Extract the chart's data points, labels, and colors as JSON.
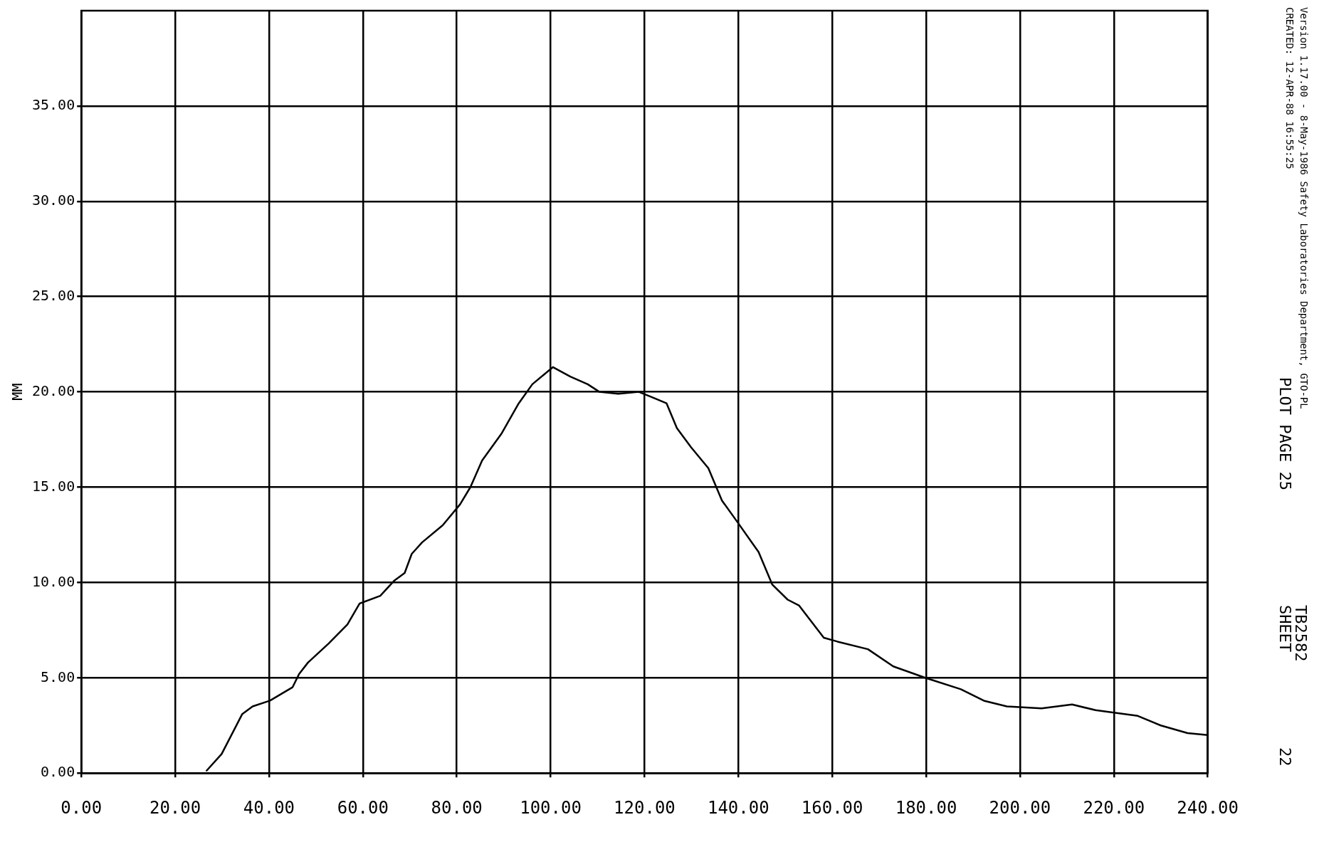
{
  "chart_data": {
    "type": "line",
    "ylabel": "MM",
    "x": [
      26.6,
      29.9,
      34.3,
      36.5,
      40.2,
      45,
      46.4,
      48.3,
      52.7,
      56.7,
      59.3,
      63.7,
      66.7,
      68.9,
      70.4,
      72.6,
      77,
      80.7,
      82.9,
      85.4,
      89.5,
      93.2,
      96.1,
      100.5,
      104.2,
      107.9,
      110.4,
      114.4,
      118.8,
      121.8,
      124.7,
      126.9,
      129.9,
      133.6,
      136.5,
      140,
      144.3,
      147.2,
      150.5,
      152.9,
      158.2,
      161.1,
      167.6,
      173,
      179.8,
      187.4,
      192.3,
      197.2,
      204.6,
      211.1,
      216.1,
      225.1,
      230,
      235.7,
      240
    ],
    "values": [
      0.1,
      1.0,
      3.1,
      3.5,
      3.8,
      4.5,
      5.2,
      5.8,
      6.8,
      7.8,
      8.9,
      9.3,
      10.1,
      10.5,
      11.5,
      12.1,
      13.0,
      14.1,
      15.0,
      16.4,
      17.8,
      19.4,
      20.4,
      21.3,
      20.8,
      20.4,
      20.0,
      19.9,
      20.0,
      19.7,
      19.4,
      18.1,
      17.1,
      16.0,
      14.3,
      13.1,
      11.6,
      9.9,
      9.1,
      8.8,
      7.1,
      6.9,
      6.5,
      5.6,
      5.0,
      4.4,
      3.8,
      3.5,
      3.4,
      3.6,
      3.3,
      3.0,
      2.5,
      2.1,
      2.0
    ],
    "color": "#000000",
    "xlim": [
      0,
      240
    ],
    "xticks": [
      {
        "value": 0,
        "label": "0.00"
      },
      {
        "value": 20,
        "label": "20.00"
      },
      {
        "value": 40,
        "label": "40.00"
      },
      {
        "value": 60,
        "label": "60.00"
      },
      {
        "value": 80,
        "label": "80.00"
      },
      {
        "value": 100,
        "label": "100.00"
      },
      {
        "value": 120,
        "label": "120.00"
      },
      {
        "value": 140,
        "label": "140.00"
      },
      {
        "value": 160,
        "label": "160.00"
      },
      {
        "value": 180,
        "label": "180.00"
      },
      {
        "value": 200,
        "label": "200.00"
      },
      {
        "value": 220,
        "label": "220.00"
      },
      {
        "value": 240,
        "label": "240.00"
      }
    ],
    "ylim": [
      0,
      40
    ],
    "yticks": [
      {
        "value": 0,
        "label": "0.00"
      },
      {
        "value": 5,
        "label": "5.00"
      },
      {
        "value": 10,
        "label": "10.00"
      },
      {
        "value": 15,
        "label": "15.00"
      },
      {
        "value": 20,
        "label": "20.00"
      },
      {
        "value": 25,
        "label": "25.00"
      },
      {
        "value": 30,
        "label": "30.00"
      },
      {
        "value": 35,
        "label": "35.00"
      }
    ],
    "grid": true,
    "legend": false,
    "marker": "none",
    "line_style": "solid",
    "annotations": [
      "Version 1.17.00 - 8-May-1986    Safety Laboratories Department, GTO-PL",
      "CREATED: 12-APR-88 16:55:25",
      "PLOT PAGE   25",
      "TB2582",
      "SHEET",
      "22"
    ]
  }
}
